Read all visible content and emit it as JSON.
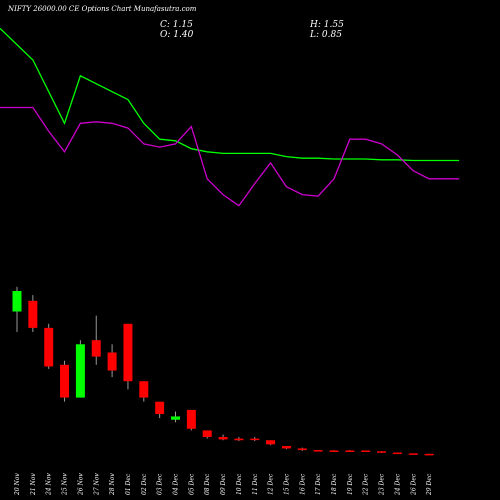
{
  "header": {
    "title": "NIFTY 26000.00  CE Options  Chart Munafasutra.com",
    "close_label": "C:",
    "close_value": "1.15",
    "open_label": "O:",
    "open_value": "1.40",
    "high_label": "H:",
    "high_value": "1.55",
    "low_label": "L:",
    "low_value": "0.85"
  },
  "colors": {
    "background": "#000000",
    "up": "#00ff00",
    "down": "#ff0000",
    "wick": "#999999",
    "ma_line": "#00ff00",
    "osc_line": "#cc00cc",
    "text": "#ffffff"
  },
  "chart_data": {
    "type": "candlestick",
    "categories": [
      "20 Nov",
      "21 Nov",
      "24 Nov",
      "25 Nov",
      "26 Nov",
      "27 Nov",
      "28 Nov",
      "01 Dec",
      "02 Dec",
      "03 Dec",
      "04 Dec",
      "05 Dec",
      "08 Dec",
      "09 Dec",
      "10 Dec",
      "11 Dec",
      "12 Dec",
      "15 Dec",
      "16 Dec",
      "17 Dec",
      "18 Dec",
      "19 Dec",
      "22 Dec",
      "23 Dec",
      "24 Dec",
      "26 Dec",
      "29 Dec"
    ],
    "price_range": [
      0,
      250
    ],
    "candles": [
      {
        "o": 175,
        "h": 205,
        "l": 150,
        "c": 200,
        "dir": "up"
      },
      {
        "o": 188,
        "h": 195,
        "l": 150,
        "c": 155,
        "dir": "down"
      },
      {
        "o": 155,
        "h": 160,
        "l": 105,
        "c": 108,
        "dir": "down"
      },
      {
        "o": 110,
        "h": 115,
        "l": 65,
        "c": 70,
        "dir": "down"
      },
      {
        "o": 70,
        "h": 140,
        "l": 70,
        "c": 135,
        "dir": "up"
      },
      {
        "o": 140,
        "h": 170,
        "l": 110,
        "c": 120,
        "dir": "down"
      },
      {
        "o": 125,
        "h": 135,
        "l": 95,
        "c": 103,
        "dir": "down"
      },
      {
        "o": 160,
        "h": 160,
        "l": 80,
        "c": 90,
        "dir": "down"
      },
      {
        "o": 90,
        "h": 90,
        "l": 65,
        "c": 70,
        "dir": "down"
      },
      {
        "o": 65,
        "h": 65,
        "l": 45,
        "c": 50,
        "dir": "down"
      },
      {
        "o": 43,
        "h": 53,
        "l": 40,
        "c": 47,
        "dir": "up"
      },
      {
        "o": 55,
        "h": 55,
        "l": 30,
        "c": 32,
        "dir": "down"
      },
      {
        "o": 30,
        "h": 30,
        "l": 20,
        "c": 22,
        "dir": "down"
      },
      {
        "o": 22,
        "h": 25,
        "l": 18,
        "c": 19,
        "dir": "down"
      },
      {
        "o": 20,
        "h": 22,
        "l": 17,
        "c": 18,
        "dir": "down"
      },
      {
        "o": 20,
        "h": 22,
        "l": 17,
        "c": 19,
        "dir": "down"
      },
      {
        "o": 18,
        "h": 18,
        "l": 12,
        "c": 13,
        "dir": "down"
      },
      {
        "o": 11,
        "h": 11,
        "l": 7,
        "c": 8,
        "dir": "down"
      },
      {
        "o": 8,
        "h": 9,
        "l": 5,
        "c": 6,
        "dir": "down"
      },
      {
        "o": 6,
        "h": 6,
        "l": 4.5,
        "c": 5,
        "dir": "down"
      },
      {
        "o": 5.5,
        "h": 6,
        "l": 4.5,
        "c": 5,
        "dir": "down"
      },
      {
        "o": 5.5,
        "h": 6,
        "l": 4,
        "c": 4.5,
        "dir": "down"
      },
      {
        "o": 5.5,
        "h": 5.5,
        "l": 4,
        "c": 4,
        "dir": "down"
      },
      {
        "o": 4.5,
        "h": 4.5,
        "l": 2.5,
        "c": 3,
        "dir": "down"
      },
      {
        "o": 3,
        "h": 3,
        "l": 1.5,
        "c": 2,
        "dir": "down"
      },
      {
        "o": 2,
        "h": 2,
        "l": 1,
        "c": 1.5,
        "dir": "down"
      },
      {
        "o": 1.4,
        "h": 1.55,
        "l": 0.85,
        "c": 1.15,
        "dir": "down"
      }
    ],
    "ma_line": {
      "x": [
        0,
        1,
        3,
        4,
        6,
        7,
        8,
        9,
        10,
        11,
        12,
        13,
        14,
        15,
        16,
        17,
        18,
        19,
        20,
        21,
        22,
        23,
        24,
        25,
        26
      ],
      "y": [
        100,
        80,
        40,
        70,
        60,
        55,
        40,
        30,
        29,
        24,
        22,
        21,
        21,
        21,
        21,
        19,
        18,
        18,
        17.5,
        17.5,
        17.5,
        17,
        17,
        16.5,
        16.5
      ]
    },
    "osc_line": {
      "x": [
        0,
        1,
        2,
        3,
        4,
        5,
        6,
        7,
        8,
        9,
        10,
        11,
        12,
        13,
        14,
        15,
        16,
        17,
        18,
        19,
        20,
        21,
        22,
        23,
        24,
        25,
        26
      ],
      "y": [
        50,
        50,
        35,
        22,
        40,
        41,
        40,
        37,
        27,
        25,
        27,
        38,
        5,
        -5,
        -12,
        2,
        15,
        0,
        -5,
        -6,
        5,
        30,
        30,
        27,
        20,
        10,
        5
      ]
    },
    "indicator_range": [
      -40,
      80
    ]
  }
}
